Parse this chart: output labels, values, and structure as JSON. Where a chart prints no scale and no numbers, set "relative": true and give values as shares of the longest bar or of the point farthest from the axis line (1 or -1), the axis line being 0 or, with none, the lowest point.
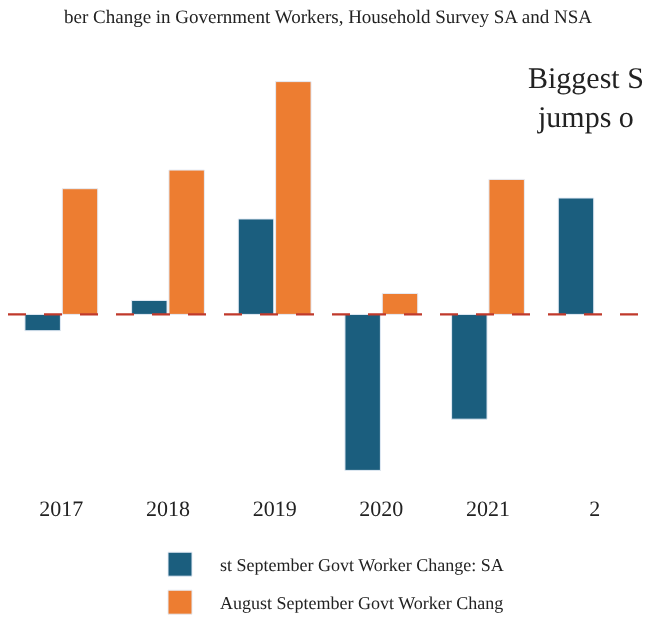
{
  "chart_data": {
    "type": "bar",
    "relative": true,
    "title": "ber Change in Government Workers, Household Survey SA and NSA",
    "annotations": [
      "Biggest S\njumps o"
    ],
    "categories": [
      "2017",
      "2018",
      "2019",
      "2020",
      "2021",
      "2"
    ],
    "series": [
      {
        "name": "st September Govt Worker Change: SA",
        "color": "#1b5e7e",
        "values": [
          -0.07,
          0.06,
          0.41,
          -0.67,
          -0.45,
          0.5
        ]
      },
      {
        "name": "August September Govt Worker Chang",
        "color": "#ed7d31",
        "values": [
          0.54,
          0.62,
          1,
          0.09,
          0.58,
          null
        ]
      }
    ],
    "ref_lines": [
      {
        "axis": "y",
        "value": 0,
        "color": "#c0392b",
        "line_style": "dashed"
      }
    ],
    "legend": "bottom"
  }
}
